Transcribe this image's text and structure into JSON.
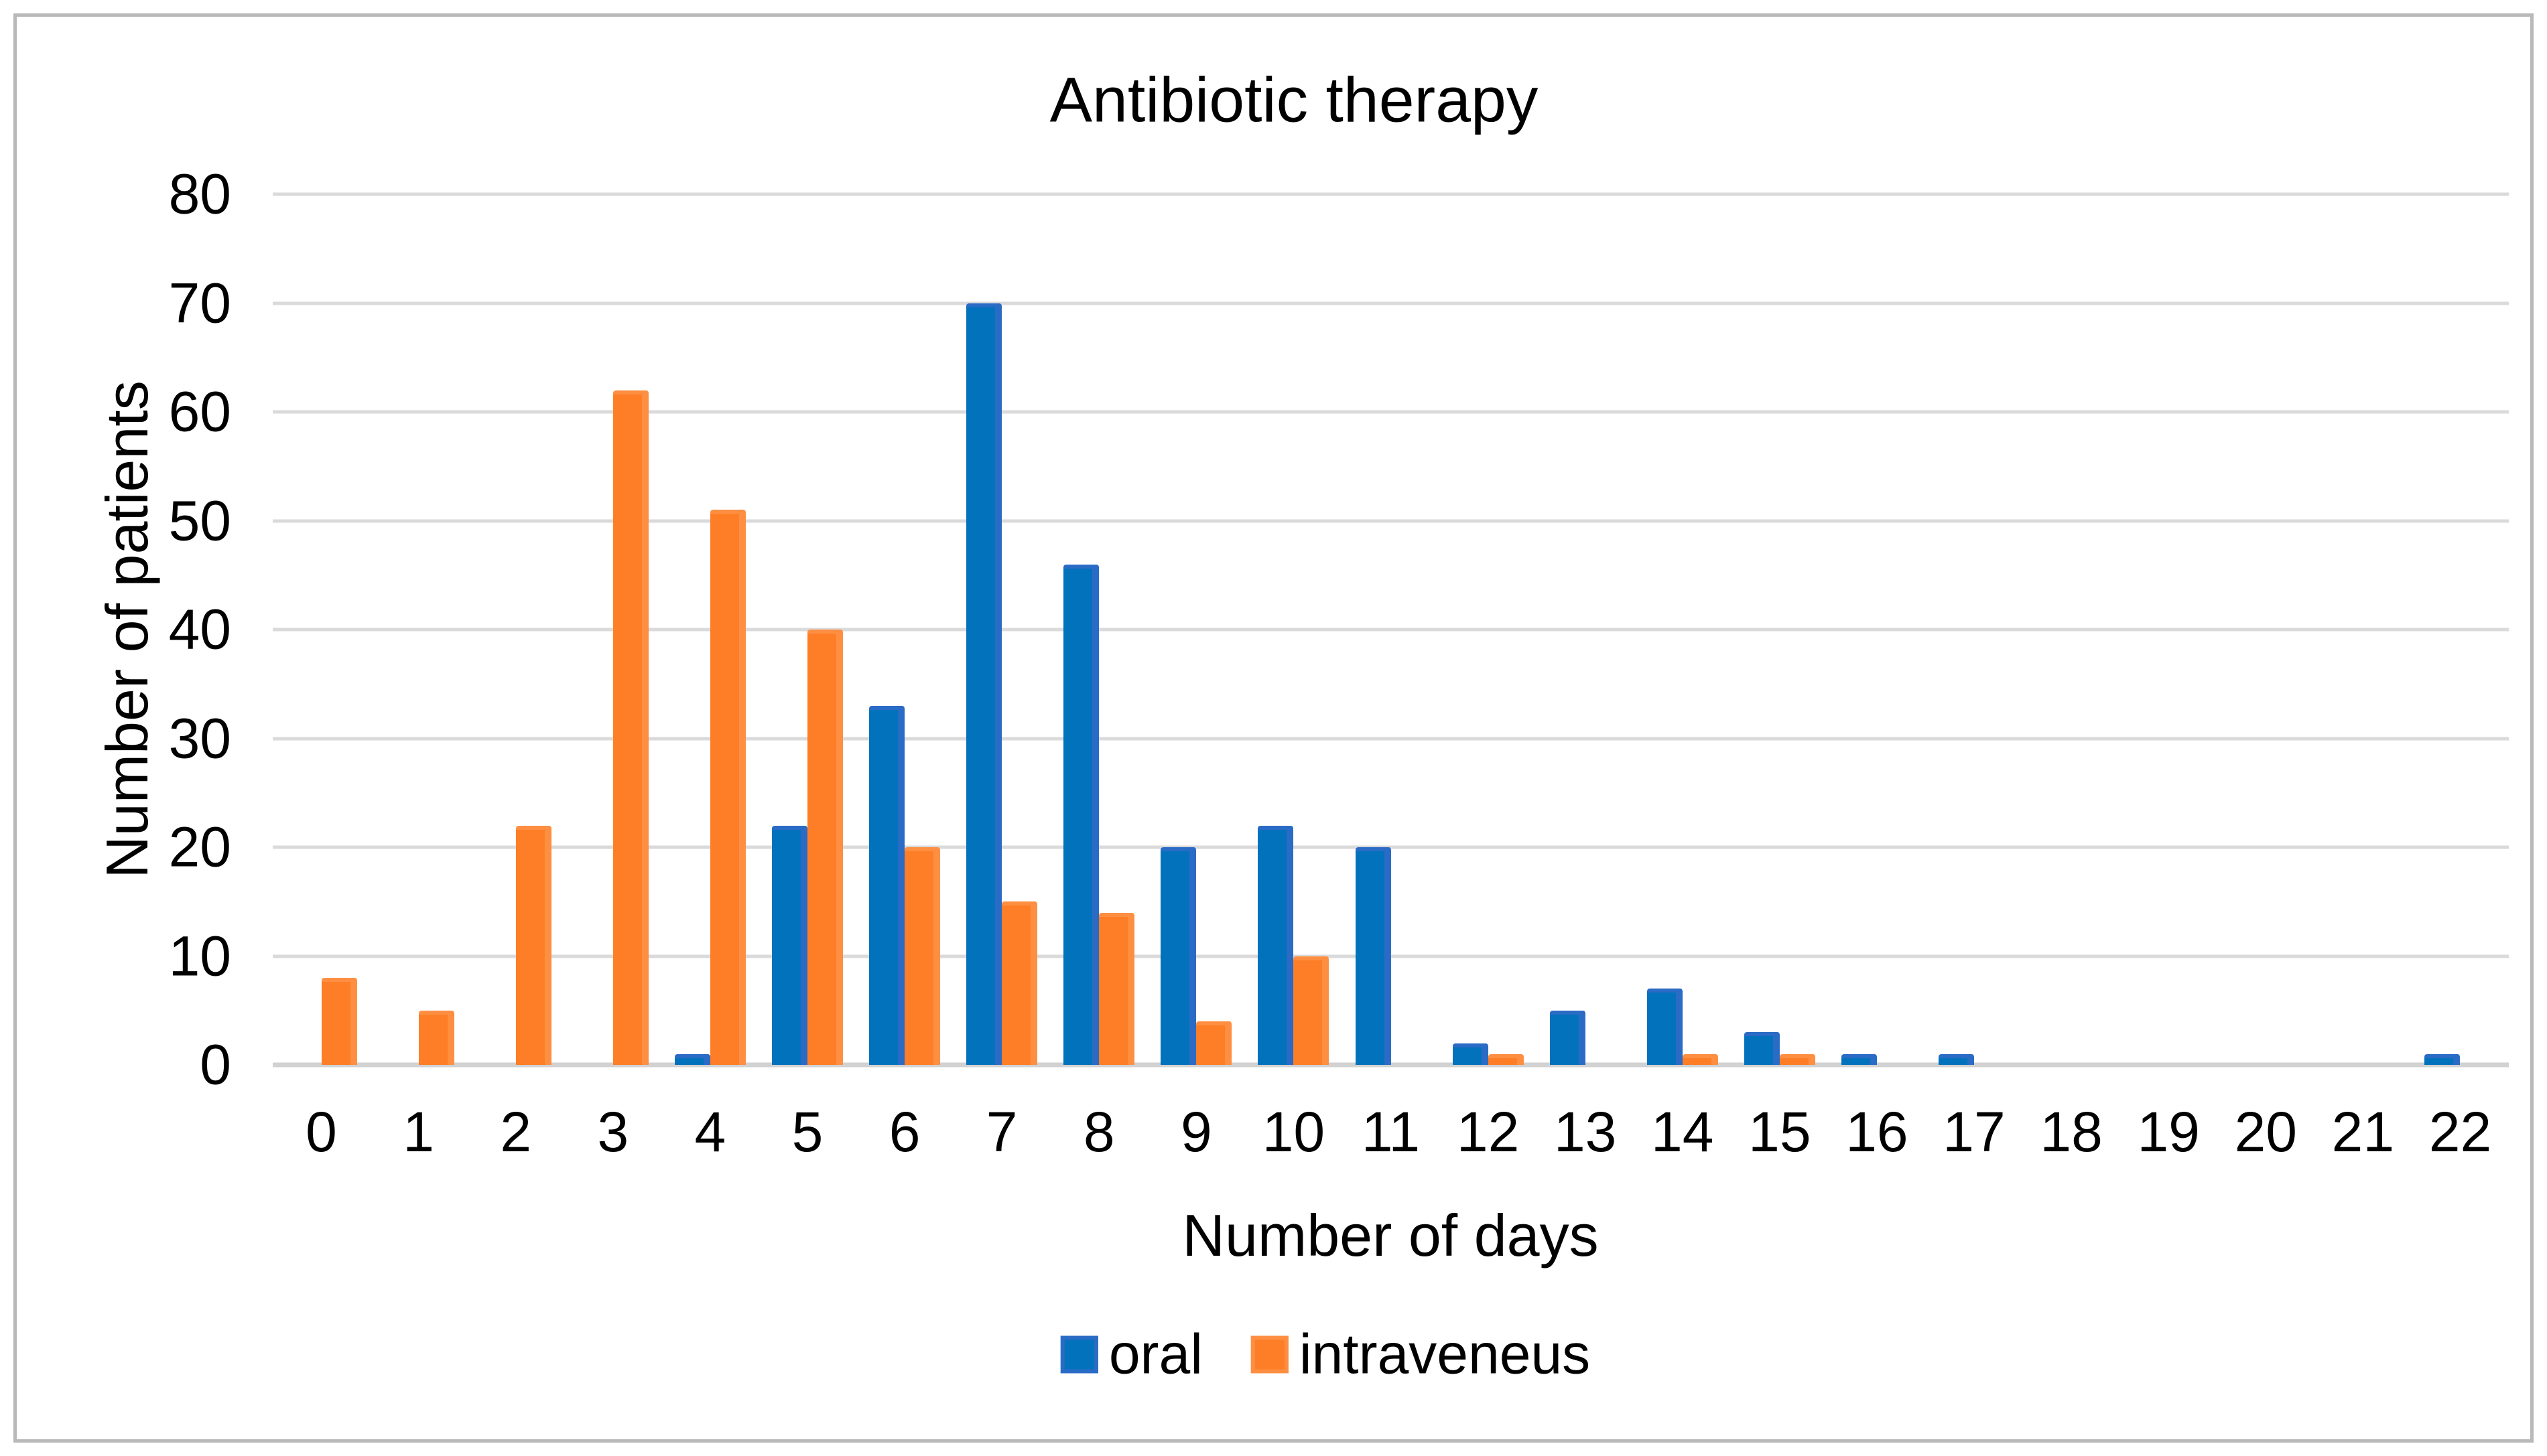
{
  "frame": {
    "background": "#ffffff",
    "border_color": "#b9b9b9"
  },
  "chart_data": {
    "type": "bar",
    "title": "Antibiotic therapy",
    "xlabel": "Number of days",
    "ylabel": "Number of patients",
    "categories": [
      "0",
      "1",
      "2",
      "3",
      "4",
      "5",
      "6",
      "7",
      "8",
      "9",
      "10",
      "11",
      "12",
      "13",
      "14",
      "15",
      "16",
      "17",
      "18",
      "19",
      "20",
      "21",
      "22"
    ],
    "series": [
      {
        "name": "oral",
        "color": "#0272bc",
        "edge_color": "#2a6bc6",
        "values": [
          0,
          0,
          0,
          0,
          1,
          22,
          33,
          70,
          46,
          20,
          22,
          20,
          2,
          5,
          7,
          3,
          1,
          1,
          0,
          0,
          0,
          0,
          1
        ]
      },
      {
        "name": "intraveneus",
        "color": "#fd7e26",
        "edge_color": "#fe8f42",
        "values": [
          8,
          5,
          22,
          62,
          51,
          40,
          20,
          15,
          14,
          4,
          10,
          0,
          1,
          0,
          1,
          1,
          0,
          0,
          0,
          0,
          0,
          0,
          0
        ]
      }
    ],
    "ylim": [
      0,
      80
    ],
    "yticks": [
      0,
      10,
      20,
      30,
      40,
      50,
      60,
      70,
      80
    ],
    "grid": true,
    "gridline_color": "#dadada",
    "axisline_color": "#d2d2d2",
    "legend_position": "bottom"
  }
}
